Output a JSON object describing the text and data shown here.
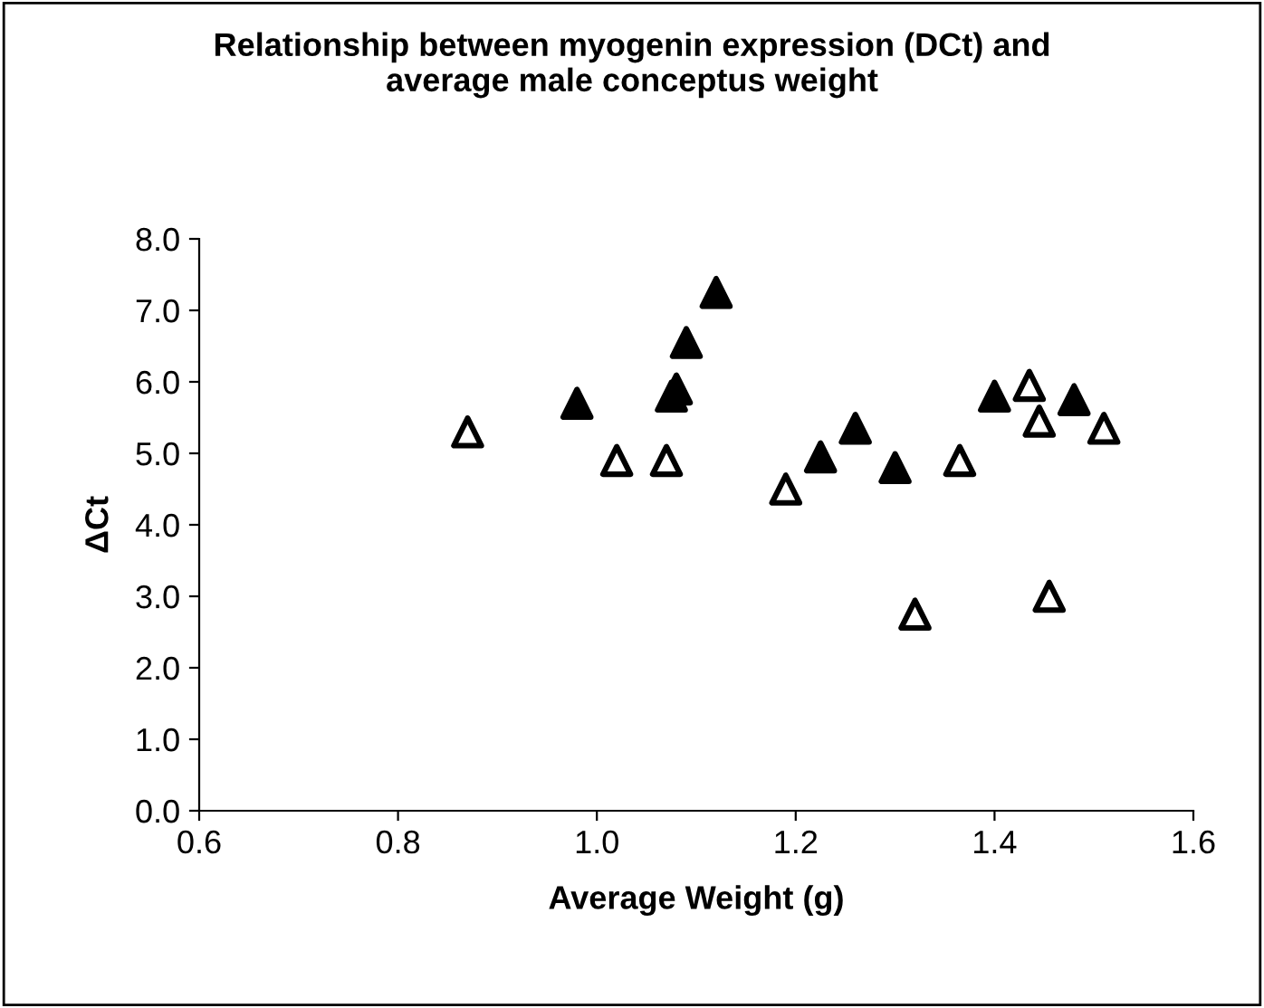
{
  "chart_data": {
    "type": "scatter",
    "title": "Relationship between myogenin expression (DCt) and\naverage male conceptus weight",
    "xlabel": "Average Weight (g)",
    "ylabel": "ΔCt",
    "xlim": [
      0.6,
      1.6
    ],
    "xticks": [
      {
        "value": 0.6,
        "label": "0.6"
      },
      {
        "value": 0.8,
        "label": "0.8"
      },
      {
        "value": 1.0,
        "label": "1.0"
      },
      {
        "value": 1.2,
        "label": "1.2"
      },
      {
        "value": 1.4,
        "label": "1.4"
      },
      {
        "value": 1.6,
        "label": "1.6"
      }
    ],
    "ylim": [
      0,
      8
    ],
    "yticks": [
      {
        "value": 0,
        "label": "0.0"
      },
      {
        "value": 1,
        "label": "1.0"
      },
      {
        "value": 2,
        "label": "2.0"
      },
      {
        "value": 3,
        "label": "3.0"
      },
      {
        "value": 4,
        "label": "4.0"
      },
      {
        "value": 5,
        "label": "5.0"
      },
      {
        "value": 6,
        "label": "6.0"
      },
      {
        "value": 7,
        "label": "7.0"
      },
      {
        "value": 8,
        "label": "8.0"
      }
    ],
    "marker": "triangle",
    "grid": false,
    "legend": false,
    "series": [
      {
        "color": "#ffffff",
        "x": [
          0.87,
          1.02,
          1.07,
          1.19,
          1.32,
          1.365,
          1.435,
          1.445,
          1.455,
          1.51
        ],
        "values": [
          5.3,
          4.9,
          4.9,
          4.5,
          2.75,
          4.9,
          5.95,
          5.45,
          3.0,
          5.35
        ]
      },
      {
        "color": "#000000",
        "x": [
          0.98,
          1.075,
          1.08,
          1.09,
          1.12,
          1.225,
          1.26,
          1.3,
          1.4,
          1.48
        ],
        "values": [
          5.7,
          5.8,
          5.9,
          6.55,
          7.25,
          4.95,
          5.35,
          4.8,
          5.8,
          5.75
        ]
      }
    ]
  }
}
